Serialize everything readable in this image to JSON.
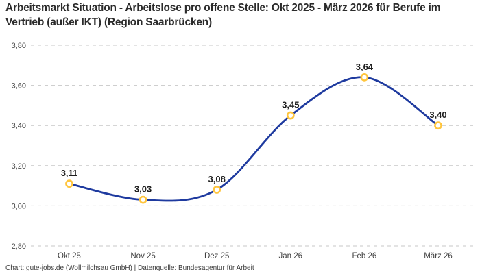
{
  "title": "Arbeitsmarkt Situation - Arbeitslose pro offene Stelle: Okt 2025 - März 2026 für Berufe im Vertrieb (außer IKT) (Region Saarbrücken)",
  "footer": {
    "text": "Chart: gute-jobs.de (Wollmilchsau GmbH) | Datenquelle: Bundesagentur für Arbeit"
  },
  "chart_data": {
    "type": "line",
    "title": "Arbeitsmarkt Situation - Arbeitslose pro offene Stelle: Okt 2025 - März 2026 für Berufe im Vertrieb (außer IKT) (Region Saarbrücken)",
    "categories": [
      "Okt 25",
      "Nov 25",
      "Dez 25",
      "Jan 26",
      "Feb 26",
      "März 26"
    ],
    "values": [
      3.11,
      3.03,
      3.08,
      3.45,
      3.64,
      3.4
    ],
    "point_labels": [
      "3,11",
      "3,03",
      "3,08",
      "3,45",
      "3,64",
      "3,40"
    ],
    "xlabel": "",
    "ylabel": "",
    "ylim": [
      2.8,
      3.8
    ],
    "yticks": [
      2.8,
      3.0,
      3.2,
      3.4,
      3.6,
      3.8
    ],
    "ytick_labels": [
      "2,80",
      "3,00",
      "3,20",
      "3,40",
      "3,60",
      "3,80"
    ],
    "grid": "horizontal-dashed",
    "legend": "none",
    "colors": {
      "line": "#1e3a9f",
      "marker_stroke": "#ffc53d",
      "marker_fill": "#ffffff",
      "gridline": "#c7c7c7",
      "tick_text": "#4a4a4a",
      "point_label_text": "#1f1f1f"
    }
  }
}
